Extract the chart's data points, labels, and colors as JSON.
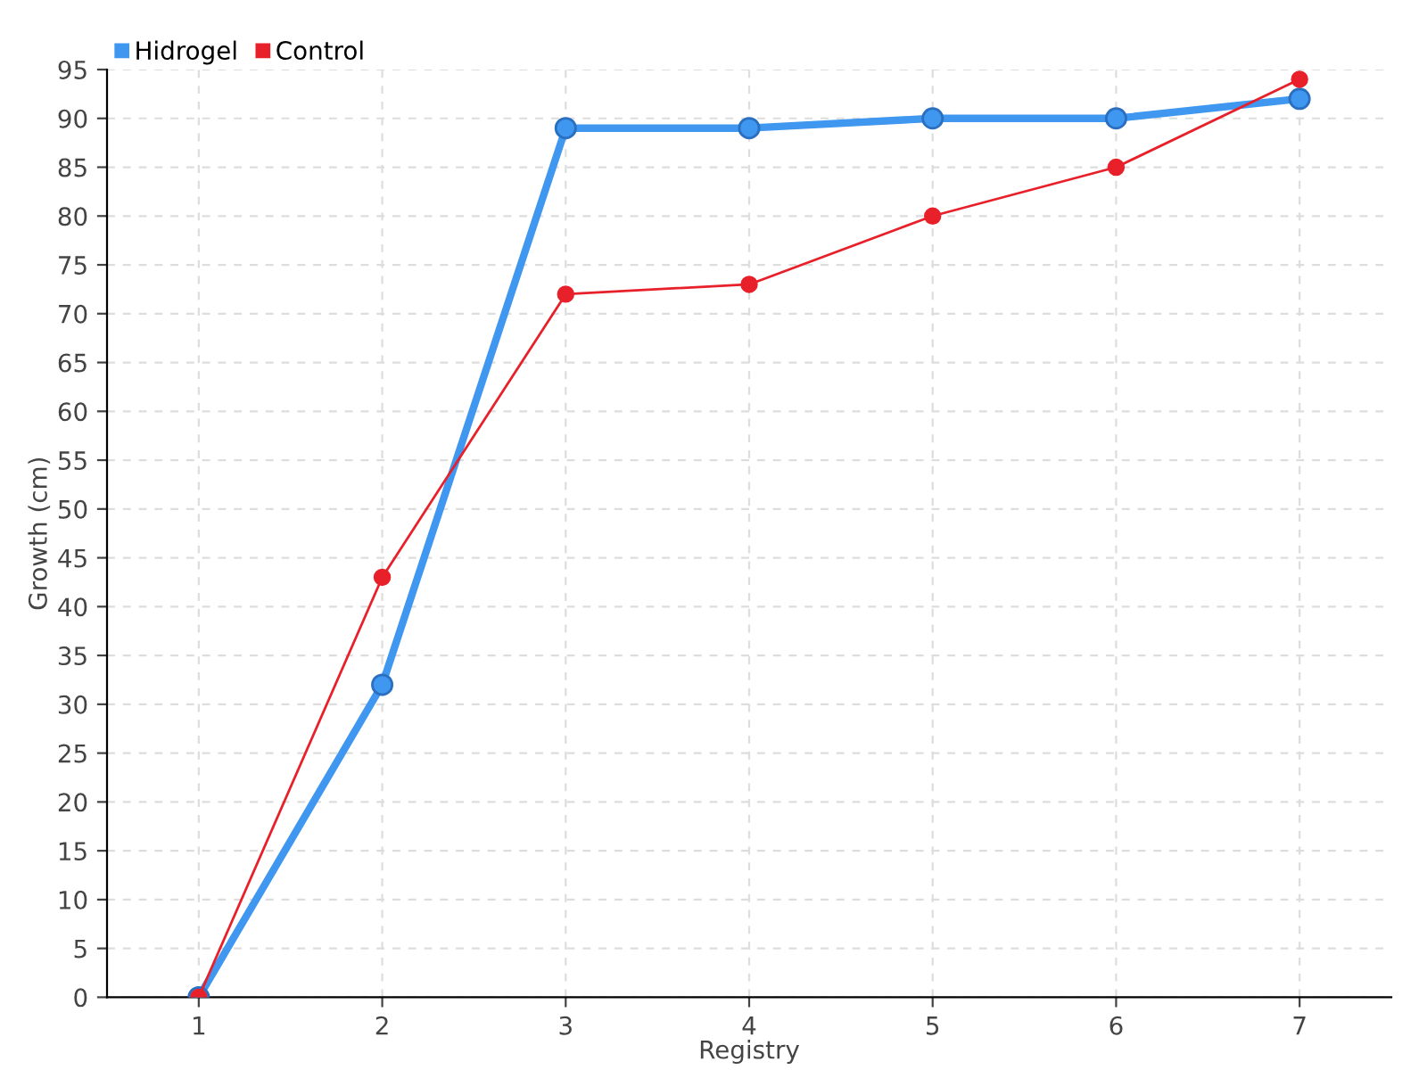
{
  "chart_data": {
    "type": "line",
    "xlabel": "Registry",
    "ylabel": "Growth (cm)",
    "x": [
      1,
      2,
      3,
      4,
      5,
      6,
      7
    ],
    "series": [
      {
        "name": "Hidrogel",
        "color": "#3f97f0",
        "values": [
          0,
          32,
          89,
          89,
          90,
          90,
          92
        ]
      },
      {
        "name": "Control",
        "color": "#e8202a",
        "values": [
          0,
          43,
          72,
          73,
          80,
          85,
          94
        ]
      }
    ],
    "xlim": [
      0.5,
      7.5
    ],
    "xticks": [
      1,
      2,
      3,
      4,
      5,
      6,
      7
    ],
    "ylim": [
      0,
      95
    ],
    "yticks": [
      0,
      5,
      10,
      15,
      20,
      25,
      30,
      35,
      40,
      45,
      50,
      55,
      60,
      65,
      70,
      75,
      80,
      85,
      90,
      95
    ],
    "grid": true,
    "legend": "top left",
    "marker": "circle",
    "line_style": "solid"
  }
}
